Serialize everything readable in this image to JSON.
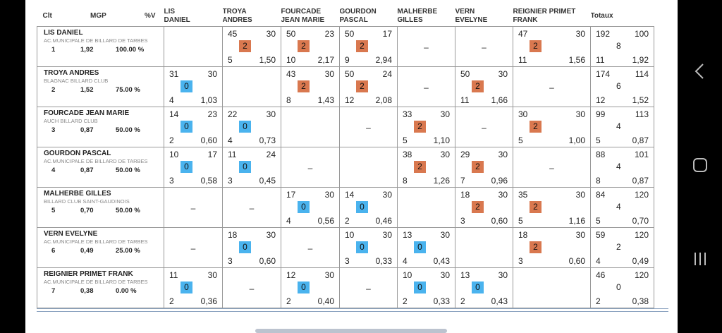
{
  "header": {
    "rank": "Clt",
    "mgp": "MGP",
    "pct": "%V",
    "opponents": [
      "LIS DANIEL",
      "TROYA ANDRES",
      "FOURCADE JEAN MARIE",
      "GOURDON PASCAL",
      "MALHERBE GILLES",
      "VERN EVELYNE",
      "REIGNIER PRIMET FRANK"
    ],
    "opponent_lines": [
      [
        "LIS",
        "DANIEL"
      ],
      [
        "TROYA",
        "ANDRES"
      ],
      [
        "FOURCADE",
        "JEAN MARIE"
      ],
      [
        "GOURDON",
        "PASCAL"
      ],
      [
        "MALHERBE",
        "GILLES"
      ],
      [
        "VERN",
        "EVELYNE"
      ],
      [
        "REIGNIER PRIMET",
        "FRANK"
      ]
    ],
    "totals": "Totaux"
  },
  "colors": {
    "win": "#d9784f",
    "loss": "#4ab3ee",
    "frame": "#999999",
    "separator": "#8aa2bf"
  },
  "rows": [
    {
      "name": "LIS DANIEL",
      "club": "AC.MUNICIPALE DE BILLARD DE TARBES",
      "rank": "1",
      "mgp": "1,92",
      "pct": "100.00 %",
      "cells": [
        null,
        {
          "points": "45",
          "target": "30",
          "result": "2",
          "innings": "5",
          "avg": "1,50"
        },
        {
          "points": "50",
          "target": "23",
          "result": "2",
          "innings": "10",
          "avg": "2,17"
        },
        {
          "points": "50",
          "target": "17",
          "result": "2",
          "innings": "9",
          "avg": "2,94"
        },
        {
          "points": "–"
        },
        {
          "points": "–"
        },
        {
          "points": "47",
          "target": "30",
          "result": "2",
          "innings": "11",
          "avg": "1,56"
        }
      ],
      "totals": {
        "points": "192",
        "target": "100",
        "result": "8",
        "innings": "11",
        "avg": "1,92"
      }
    },
    {
      "name": "TROYA ANDRES",
      "club": "BLAGNAC BILLARD CLUB",
      "rank": "2",
      "mgp": "1,52",
      "pct": "75.00 %",
      "cells": [
        {
          "points": "31",
          "target": "30",
          "result": "0",
          "innings": "4",
          "avg": "1,03"
        },
        null,
        {
          "points": "43",
          "target": "30",
          "result": "2",
          "innings": "8",
          "avg": "1,43"
        },
        {
          "points": "50",
          "target": "24",
          "result": "2",
          "innings": "12",
          "avg": "2,08"
        },
        {
          "points": "–"
        },
        {
          "points": "50",
          "target": "30",
          "result": "2",
          "innings": "11",
          "avg": "1,66"
        },
        {
          "points": "–"
        }
      ],
      "totals": {
        "points": "174",
        "target": "114",
        "result": "6",
        "innings": "12",
        "avg": "1,52"
      }
    },
    {
      "name": "FOURCADE JEAN MARIE",
      "club": "AUCH BILLARD CLUB",
      "rank": "3",
      "mgp": "0,87",
      "pct": "50.00 %",
      "cells": [
        {
          "points": "14",
          "target": "23",
          "result": "0",
          "innings": "2",
          "avg": "0,60"
        },
        {
          "points": "22",
          "target": "30",
          "result": "0",
          "innings": "4",
          "avg": "0,73"
        },
        null,
        {
          "points": "–"
        },
        {
          "points": "33",
          "target": "30",
          "result": "2",
          "innings": "5",
          "avg": "1,10"
        },
        {
          "points": "–"
        },
        {
          "points": "30",
          "target": "30",
          "result": "2",
          "innings": "5",
          "avg": "1,00"
        }
      ],
      "totals": {
        "points": "99",
        "target": "113",
        "result": "4",
        "innings": "5",
        "avg": "0,87"
      }
    },
    {
      "name": "GOURDON PASCAL",
      "club": "AC.MUNICIPALE DE BILLARD DE TARBES",
      "rank": "4",
      "mgp": "0,87",
      "pct": "50.00 %",
      "cells": [
        {
          "points": "10",
          "target": "17",
          "result": "0",
          "innings": "3",
          "avg": "0,58"
        },
        {
          "points": "11",
          "target": "24",
          "result": "0",
          "innings": "3",
          "avg": "0,45"
        },
        {
          "points": "–"
        },
        null,
        {
          "points": "38",
          "target": "30",
          "result": "2",
          "innings": "8",
          "avg": "1,26"
        },
        {
          "points": "29",
          "target": "30",
          "result": "2",
          "innings": "7",
          "avg": "0,96"
        },
        {
          "points": "–"
        }
      ],
      "totals": {
        "points": "88",
        "target": "101",
        "result": "4",
        "innings": "8",
        "avg": "0,87"
      }
    },
    {
      "name": "MALHERBE GILLES",
      "club": "BILLARD CLUB SAINT-GAUDINOIS",
      "rank": "5",
      "mgp": "0,70",
      "pct": "50.00 %",
      "cells": [
        {
          "points": "–"
        },
        {
          "points": "–"
        },
        {
          "points": "17",
          "target": "30",
          "result": "0",
          "innings": "4",
          "avg": "0,56"
        },
        {
          "points": "14",
          "target": "30",
          "result": "0",
          "innings": "2",
          "avg": "0,46"
        },
        null,
        {
          "points": "18",
          "target": "30",
          "result": "2",
          "innings": "3",
          "avg": "0,60"
        },
        {
          "points": "35",
          "target": "30",
          "result": "2",
          "innings": "5",
          "avg": "1,16"
        }
      ],
      "totals": {
        "points": "84",
        "target": "120",
        "result": "4",
        "innings": "5",
        "avg": "0,70"
      }
    },
    {
      "name": "VERN EVELYNE",
      "club": "AC.MUNICIPALE DE BILLARD DE TARBES",
      "rank": "6",
      "mgp": "0,49",
      "pct": "25.00 %",
      "cells": [
        {
          "points": "–"
        },
        {
          "points": "18",
          "target": "30",
          "result": "0",
          "innings": "3",
          "avg": "0,60"
        },
        {
          "points": "–"
        },
        {
          "points": "10",
          "target": "30",
          "result": "0",
          "innings": "3",
          "avg": "0,33"
        },
        {
          "points": "13",
          "target": "30",
          "result": "0",
          "innings": "4",
          "avg": "0,43"
        },
        null,
        {
          "points": "18",
          "target": "30",
          "result": "2",
          "innings": "3",
          "avg": "0,60"
        }
      ],
      "totals": {
        "points": "59",
        "target": "120",
        "result": "2",
        "innings": "4",
        "avg": "0,49"
      }
    },
    {
      "name": "REIGNIER PRIMET FRANK",
      "club": "AC.MUNICIPALE DE BILLARD DE TARBES",
      "rank": "7",
      "mgp": "0,38",
      "pct": "0.00 %",
      "cells": [
        {
          "points": "11",
          "target": "30",
          "result": "0",
          "innings": "2",
          "avg": "0,36"
        },
        {
          "points": "–"
        },
        {
          "points": "12",
          "target": "30",
          "result": "0",
          "innings": "2",
          "avg": "0,40"
        },
        {
          "points": "–"
        },
        {
          "points": "10",
          "target": "30",
          "result": "0",
          "innings": "2",
          "avg": "0,33"
        },
        {
          "points": "13",
          "target": "30",
          "result": "0",
          "innings": "2",
          "avg": "0,43"
        },
        null
      ],
      "totals": {
        "points": "46",
        "target": "120",
        "result": "0",
        "innings": "2",
        "avg": "0,38"
      }
    }
  ],
  "navbar": {
    "back": "chevron-left-icon",
    "home": "rounded-square-icon",
    "recents": "three-bars-icon"
  }
}
